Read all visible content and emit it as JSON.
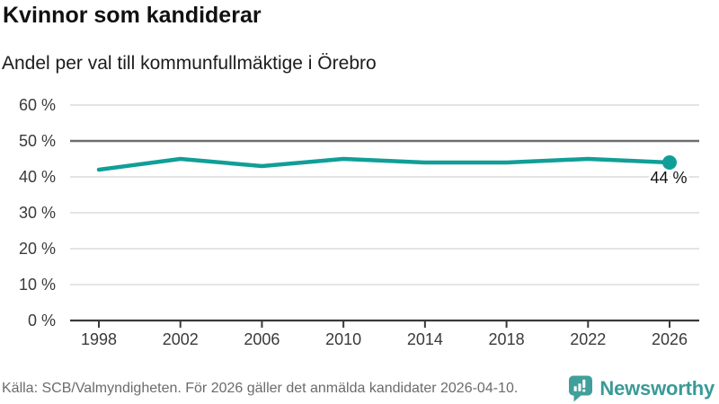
{
  "header": {
    "title": "Kvinnor som kandiderar",
    "subtitle": "Andel per val till kommunfullmäktige i Örebro"
  },
  "chart_data": {
    "type": "line",
    "title": "Kvinnor som kandiderar",
    "subtitle": "Andel per val till kommunfullmäktige i Örebro",
    "categories": [
      "1998",
      "2002",
      "2006",
      "2010",
      "2014",
      "2018",
      "2022",
      "2026"
    ],
    "values": [
      42,
      45,
      43,
      45,
      44,
      44,
      45,
      44
    ],
    "unit": "%",
    "xlabel": "",
    "ylabel": "",
    "ylim": [
      0,
      60
    ],
    "ytick_step": 10,
    "ytick_labels": [
      "0 %",
      "10 %",
      "20 %",
      "30 %",
      "40 %",
      "50 %",
      "60 %"
    ],
    "grid": true,
    "reference_line_value": 50,
    "last_point_label": "44 %",
    "legend": "none",
    "line_color": "#119e98",
    "marker": "circle-on-last-point-only"
  },
  "footer": {
    "source": "Källa: SCB/Valmyndigheten. För 2026 gäller det anmälda kandidater 2026-04-10.",
    "brand": "Newsworthy"
  },
  "colors": {
    "accent_teal": "#119e98",
    "logo_teal": "#3f9f9b",
    "axis_text": "#3a3a3a",
    "grid_light": "#e4e4e4",
    "grid_reference": "#6e6e6e",
    "axis_line": "#3a3a3a",
    "annotation_text": "#111111",
    "source_text": "#6b6b6b"
  }
}
